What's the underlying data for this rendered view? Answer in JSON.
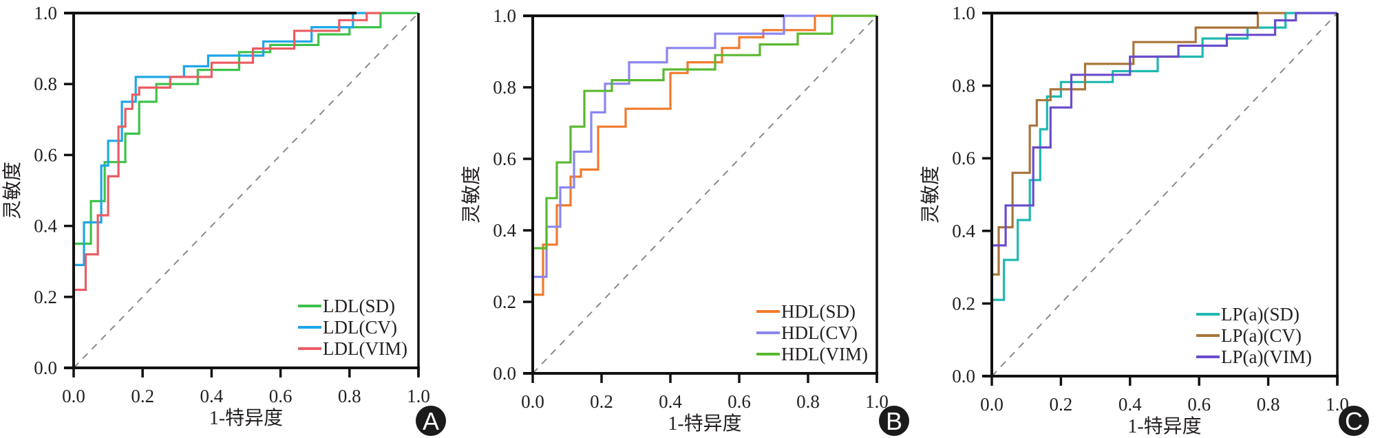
{
  "chart_data": [
    {
      "type": "line",
      "panel_label": "A",
      "xlabel": "1-特异度",
      "ylabel": "灵敏度",
      "xlim": [
        0,
        1
      ],
      "ylim": [
        0,
        1
      ],
      "xticks": [
        "0.0",
        "0.2",
        "0.4",
        "0.6",
        "0.8",
        "1.0"
      ],
      "yticks": [
        "0.0",
        "0.2",
        "0.4",
        "0.6",
        "0.8",
        "1.0"
      ],
      "legend_position": "bottom-right",
      "reference_line": "diagonal dashed",
      "series": [
        {
          "name": "LDL(SD)",
          "color": "#3cc24a",
          "x": [
            0,
            0.05,
            0.05,
            0.09,
            0.09,
            0.15,
            0.15,
            0.19,
            0.19,
            0.24,
            0.24,
            0.36,
            0.36,
            0.48,
            0.48,
            0.57,
            0.57,
            0.71,
            0.71,
            0.8,
            0.8,
            0.89,
            0.89,
            1.0
          ],
          "y": [
            0.35,
            0.35,
            0.47,
            0.47,
            0.58,
            0.58,
            0.66,
            0.66,
            0.75,
            0.75,
            0.8,
            0.8,
            0.84,
            0.84,
            0.89,
            0.89,
            0.91,
            0.91,
            0.94,
            0.94,
            0.96,
            0.96,
            1.0,
            1.0
          ]
        },
        {
          "name": "LDL(CV)",
          "color": "#1ea6e8",
          "x": [
            0,
            0.03,
            0.03,
            0.08,
            0.08,
            0.1,
            0.1,
            0.14,
            0.14,
            0.18,
            0.18,
            0.32,
            0.32,
            0.39,
            0.39,
            0.55,
            0.55,
            0.69,
            0.69,
            0.81,
            0.81,
            0.85
          ],
          "y": [
            0.29,
            0.29,
            0.41,
            0.41,
            0.57,
            0.57,
            0.64,
            0.64,
            0.75,
            0.75,
            0.82,
            0.82,
            0.85,
            0.85,
            0.88,
            0.88,
            0.92,
            0.92,
            0.96,
            0.96,
            1.0,
            1.0
          ]
        },
        {
          "name": "LDL(VIM)",
          "color": "#ea5c63",
          "x": [
            0,
            0.035,
            0.035,
            0.07,
            0.07,
            0.1,
            0.1,
            0.13,
            0.13,
            0.15,
            0.15,
            0.17,
            0.17,
            0.19,
            0.19,
            0.28,
            0.28,
            0.4,
            0.4,
            0.52,
            0.52,
            0.64,
            0.64,
            0.77,
            0.77,
            0.85,
            0.85,
            0.89
          ],
          "y": [
            0.22,
            0.22,
            0.32,
            0.32,
            0.43,
            0.43,
            0.54,
            0.54,
            0.68,
            0.68,
            0.73,
            0.73,
            0.77,
            0.77,
            0.79,
            0.79,
            0.82,
            0.82,
            0.86,
            0.86,
            0.9,
            0.9,
            0.95,
            0.95,
            0.98,
            0.98,
            1.0,
            1.0
          ]
        }
      ]
    },
    {
      "type": "line",
      "panel_label": "B",
      "xlabel": "1-特异度",
      "ylabel": "灵敏度",
      "xlim": [
        0,
        1
      ],
      "ylim": [
        0,
        1
      ],
      "xticks": [
        "0.0",
        "0.2",
        "0.4",
        "0.6",
        "0.8",
        "1.0"
      ],
      "yticks": [
        "0.0",
        "0.2",
        "0.4",
        "0.6",
        "0.8",
        "1.0"
      ],
      "legend_position": "bottom-right",
      "reference_line": "diagonal dashed",
      "series": [
        {
          "name": "HDL(SD)",
          "color": "#f07a2c",
          "x": [
            0,
            0.03,
            0.03,
            0.07,
            0.07,
            0.11,
            0.11,
            0.14,
            0.14,
            0.19,
            0.19,
            0.27,
            0.27,
            0.4,
            0.4,
            0.45,
            0.45,
            0.55,
            0.55,
            0.6,
            0.6,
            0.67,
            0.67,
            0.82,
            0.82,
            0.87
          ],
          "y": [
            0.22,
            0.22,
            0.36,
            0.36,
            0.47,
            0.47,
            0.55,
            0.55,
            0.57,
            0.57,
            0.69,
            0.69,
            0.74,
            0.74,
            0.84,
            0.84,
            0.87,
            0.87,
            0.91,
            0.91,
            0.94,
            0.94,
            0.96,
            0.96,
            1.0,
            1.0
          ]
        },
        {
          "name": "HDL(CV)",
          "color": "#8a86f0",
          "x": [
            0,
            0.04,
            0.04,
            0.08,
            0.08,
            0.12,
            0.12,
            0.17,
            0.17,
            0.21,
            0.21,
            0.28,
            0.28,
            0.39,
            0.39,
            0.53,
            0.53,
            0.73,
            0.73,
            0.82
          ],
          "y": [
            0.27,
            0.27,
            0.41,
            0.41,
            0.52,
            0.52,
            0.62,
            0.62,
            0.73,
            0.73,
            0.81,
            0.81,
            0.87,
            0.87,
            0.91,
            0.91,
            0.95,
            0.95,
            1.0,
            1.0
          ]
        },
        {
          "name": "HDL(VIM)",
          "color": "#5ab82e",
          "x": [
            0,
            0.04,
            0.04,
            0.07,
            0.07,
            0.11,
            0.11,
            0.15,
            0.15,
            0.23,
            0.23,
            0.38,
            0.38,
            0.53,
            0.53,
            0.66,
            0.66,
            0.77,
            0.77,
            0.87,
            0.87,
            1.0
          ],
          "y": [
            0.35,
            0.35,
            0.49,
            0.49,
            0.59,
            0.59,
            0.69,
            0.69,
            0.79,
            0.79,
            0.82,
            0.82,
            0.85,
            0.85,
            0.89,
            0.89,
            0.92,
            0.92,
            0.95,
            0.95,
            1.0,
            1.0
          ]
        }
      ]
    },
    {
      "type": "line",
      "panel_label": "C",
      "xlabel": "1-特异度",
      "ylabel": "灵敏度",
      "xlim": [
        0,
        1
      ],
      "ylim": [
        0,
        1
      ],
      "xticks": [
        "0.0",
        "0.2",
        "0.4",
        "0.6",
        "0.8",
        "1.0"
      ],
      "yticks": [
        "0.0",
        "0.2",
        "0.4",
        "0.6",
        "0.8",
        "1.0"
      ],
      "legend_position": "bottom-right",
      "reference_line": "diagonal dashed",
      "series": [
        {
          "name": "LP(a)(SD)",
          "color": "#1fb8b0",
          "x": [
            0,
            0.035,
            0.035,
            0.075,
            0.075,
            0.11,
            0.11,
            0.14,
            0.14,
            0.16,
            0.16,
            0.2,
            0.2,
            0.35,
            0.35,
            0.48,
            0.48,
            0.61,
            0.61,
            0.74,
            0.74,
            0.85,
            0.85,
            1.0
          ],
          "y": [
            0.21,
            0.21,
            0.32,
            0.32,
            0.43,
            0.43,
            0.54,
            0.54,
            0.68,
            0.68,
            0.77,
            0.77,
            0.81,
            0.81,
            0.84,
            0.84,
            0.88,
            0.88,
            0.93,
            0.93,
            0.96,
            0.96,
            1.0,
            1.0
          ]
        },
        {
          "name": "LP(a)(CV)",
          "color": "#a8743a",
          "x": [
            0,
            0.02,
            0.02,
            0.06,
            0.06,
            0.11,
            0.11,
            0.13,
            0.13,
            0.17,
            0.17,
            0.27,
            0.27,
            0.41,
            0.41,
            0.59,
            0.59,
            0.77,
            0.77,
            0.85
          ],
          "y": [
            0.28,
            0.28,
            0.41,
            0.41,
            0.56,
            0.56,
            0.69,
            0.69,
            0.76,
            0.76,
            0.79,
            0.79,
            0.86,
            0.86,
            0.92,
            0.92,
            0.96,
            0.96,
            1.0,
            1.0
          ]
        },
        {
          "name": "LP(a)(VIM)",
          "color": "#6a4ccc",
          "x": [
            0,
            0.04,
            0.04,
            0.12,
            0.12,
            0.17,
            0.17,
            0.23,
            0.23,
            0.4,
            0.4,
            0.54,
            0.54,
            0.68,
            0.68,
            0.82,
            0.82,
            0.88,
            0.88,
            1.0
          ],
          "y": [
            0.36,
            0.36,
            0.47,
            0.47,
            0.63,
            0.63,
            0.74,
            0.74,
            0.83,
            0.83,
            0.88,
            0.88,
            0.91,
            0.91,
            0.94,
            0.94,
            0.98,
            0.98,
            1.0,
            1.0
          ]
        }
      ]
    }
  ]
}
